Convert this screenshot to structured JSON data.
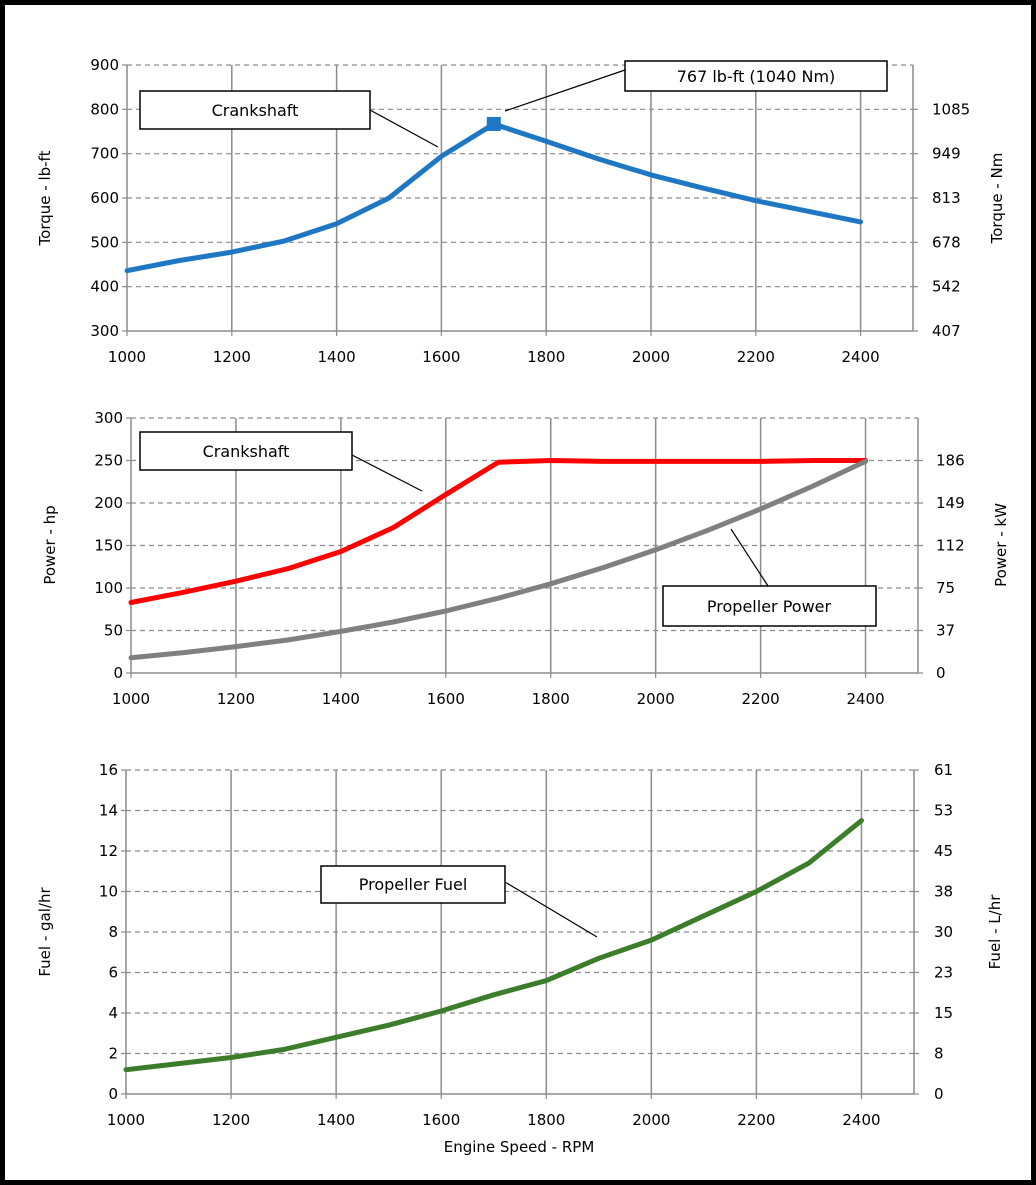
{
  "chart_data": [
    {
      "type": "line",
      "id": "torque",
      "x": [
        1000,
        1100,
        1200,
        1300,
        1400,
        1500,
        1600,
        1700,
        1800,
        1900,
        2000,
        2100,
        2200,
        2300,
        2400
      ],
      "series": [
        {
          "values": [
            436,
            459,
            478,
            503,
            542,
            600,
            694,
            767,
            728,
            688,
            652,
            622,
            594,
            570,
            546
          ],
          "color": "#1f77c4"
        }
      ],
      "xlim": [
        1000,
        2500
      ],
      "xticks": [
        1000,
        1200,
        1400,
        1600,
        1800,
        2000,
        2200,
        2400
      ],
      "ylim": [
        300,
        900
      ],
      "yticks": [
        300,
        400,
        500,
        600,
        700,
        800,
        900
      ],
      "y2ticks": [
        "407",
        "542",
        "678",
        "813",
        "949",
        "1085"
      ],
      "ylabel": "Torque - lb-ft",
      "y2label": "Torque - Nm",
      "xlabel": "",
      "grid": true,
      "callouts": [
        "Crankshaft",
        "767 lb-ft (1040 Nm)"
      ],
      "marker": {
        "x": 1700,
        "y": 767
      }
    },
    {
      "type": "line",
      "id": "power",
      "x": [
        1000,
        1100,
        1200,
        1300,
        1400,
        1500,
        1600,
        1700,
        1800,
        1900,
        2000,
        2100,
        2200,
        2300,
        2400
      ],
      "series": [
        {
          "values": [
            83,
            95,
            108,
            123,
            143,
            171,
            210,
            248,
            250,
            249,
            249,
            249,
            249,
            250,
            250
          ],
          "color": "#ff0000"
        },
        {
          "values": [
            18,
            24,
            31,
            39,
            49,
            60,
            73,
            88,
            105,
            124,
            145,
            168,
            193,
            220,
            249
          ],
          "color": "#808080"
        }
      ],
      "xlim": [
        1000,
        2500
      ],
      "xticks": [
        1000,
        1200,
        1400,
        1600,
        1800,
        2000,
        2200,
        2400
      ],
      "ylim": [
        0,
        300
      ],
      "yticks": [
        0,
        50,
        100,
        150,
        200,
        250,
        300
      ],
      "y2ticks": [
        "0",
        "37",
        "75",
        "112",
        "149",
        "186"
      ],
      "ylabel": "Power - hp",
      "y2label": "Power - kW",
      "xlabel": "",
      "grid": true,
      "callouts": [
        "Crankshaft",
        "Propeller Power"
      ]
    },
    {
      "type": "line",
      "id": "fuel",
      "x": [
        1000,
        1100,
        1200,
        1300,
        1400,
        1500,
        1600,
        1700,
        1800,
        1900,
        2000,
        2100,
        2200,
        2300,
        2400
      ],
      "series": [
        {
          "values": [
            1.2,
            1.5,
            1.8,
            2.2,
            2.8,
            3.4,
            4.1,
            4.9,
            5.6,
            6.7,
            7.6,
            8.8,
            10.0,
            11.4,
            13.5
          ],
          "color": "#3b7d2a"
        }
      ],
      "xlim": [
        1000,
        2500
      ],
      "xticks": [
        1000,
        1200,
        1400,
        1600,
        1800,
        2000,
        2200,
        2400
      ],
      "ylim": [
        0,
        16
      ],
      "yticks": [
        0,
        2,
        4,
        6,
        8,
        10,
        12,
        14,
        16
      ],
      "y2ticks": [
        "0",
        "8",
        "15",
        "23",
        "30",
        "38",
        "45",
        "53",
        "61"
      ],
      "ylabel": "Fuel - gal/hr",
      "y2label": "Fuel - L/hr",
      "xlabel": "Engine Speed - RPM",
      "grid": true,
      "callouts": [
        "Propeller Fuel"
      ]
    }
  ]
}
